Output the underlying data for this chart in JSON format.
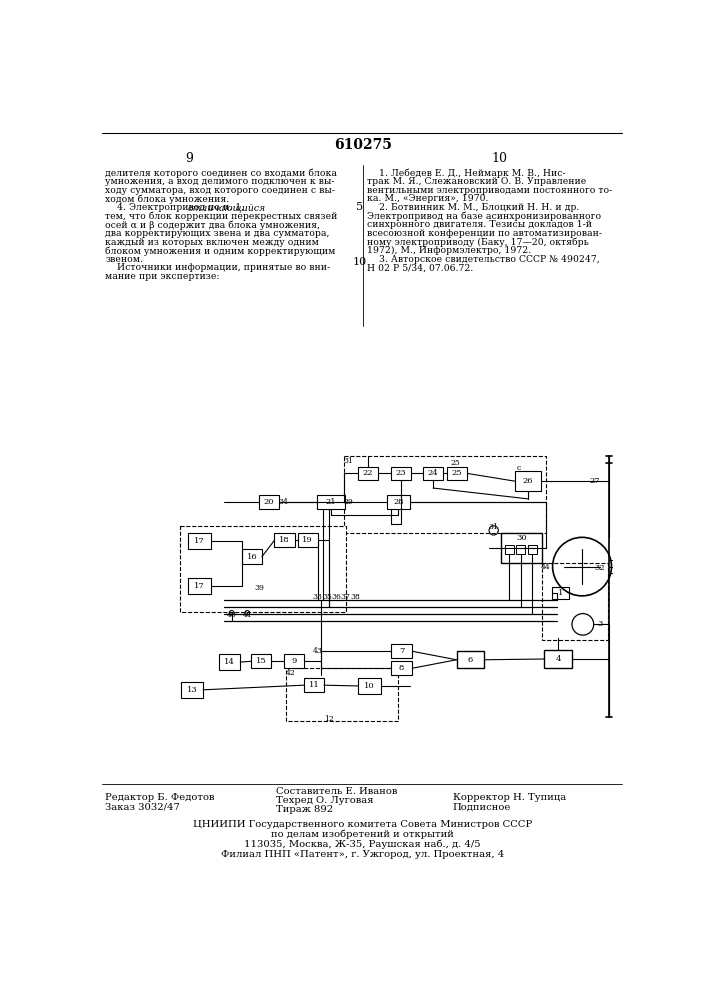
{
  "patent_number": "610275",
  "page_left": "9",
  "page_right": "10",
  "text_left": [
    "делителя которого соединен со входами блока",
    "умножения, а вход делимого подключен к вы-",
    "ходу сумматора, вход которого соединен с вы-",
    "ходом блока умножения.",
    "    4. Электропривод по п. 1, отличающийся",
    "тем, что блок коррекции перекрестных связей",
    "осей α и β содержит два блока умножения,",
    "два корректирующих звена и два сумматора,",
    "каждый из которых включен между одним",
    "блоком умножения и одним корректирующим",
    "звеном.",
    "    Источники информации, принятые во вни-",
    "мание при экспертизе:"
  ],
  "text_right": [
    "    1. Лебедев Е. Д., Неймарк М. В., Нис-",
    "трак М. Я., Слежановский О. В. Управление",
    "вентильными электроприводами постоянного то-",
    "ка. М., «Энергия», 1970.",
    "    2. Ботвинник М. М., Блоцкий Н. Н. и др.",
    "Электропривод на базе асинхронизированного",
    "синхронного двигателя. Тезисы докладов 1-й",
    "всесоюзной конференции по автоматизирован-",
    "ному электроприводу (Баку, 17—20, октябрь",
    "1972), М., Информэлектро, 1972.",
    "    3. Авторское свидетельство СССР № 490247,",
    "Н 02 Р 5/34, 07.06.72."
  ],
  "footer_left1": "Редактор Б. Федотов",
  "footer_left2": "Заказ 3032/47",
  "footer_center1": "Составитель Е. Иванов",
  "footer_center2": "Техред О. Луговая",
  "footer_center3": "Тираж 892",
  "footer_right1": "Корректор Н. Тупица",
  "footer_right2": "Подписное",
  "footer_org1": "ЦНИИПИ Государственного комитета Совета Министров СССР",
  "footer_org2": "по делам изобретений и открытий",
  "footer_org3": "113035, Москва, Ж-35, Раушская наб., д. 4/5",
  "footer_org4": "Филиал ПНП «Патент», г. Ужгород, ул. Проектная, 4",
  "bg_color": "#ffffff",
  "text_color": "#000000"
}
